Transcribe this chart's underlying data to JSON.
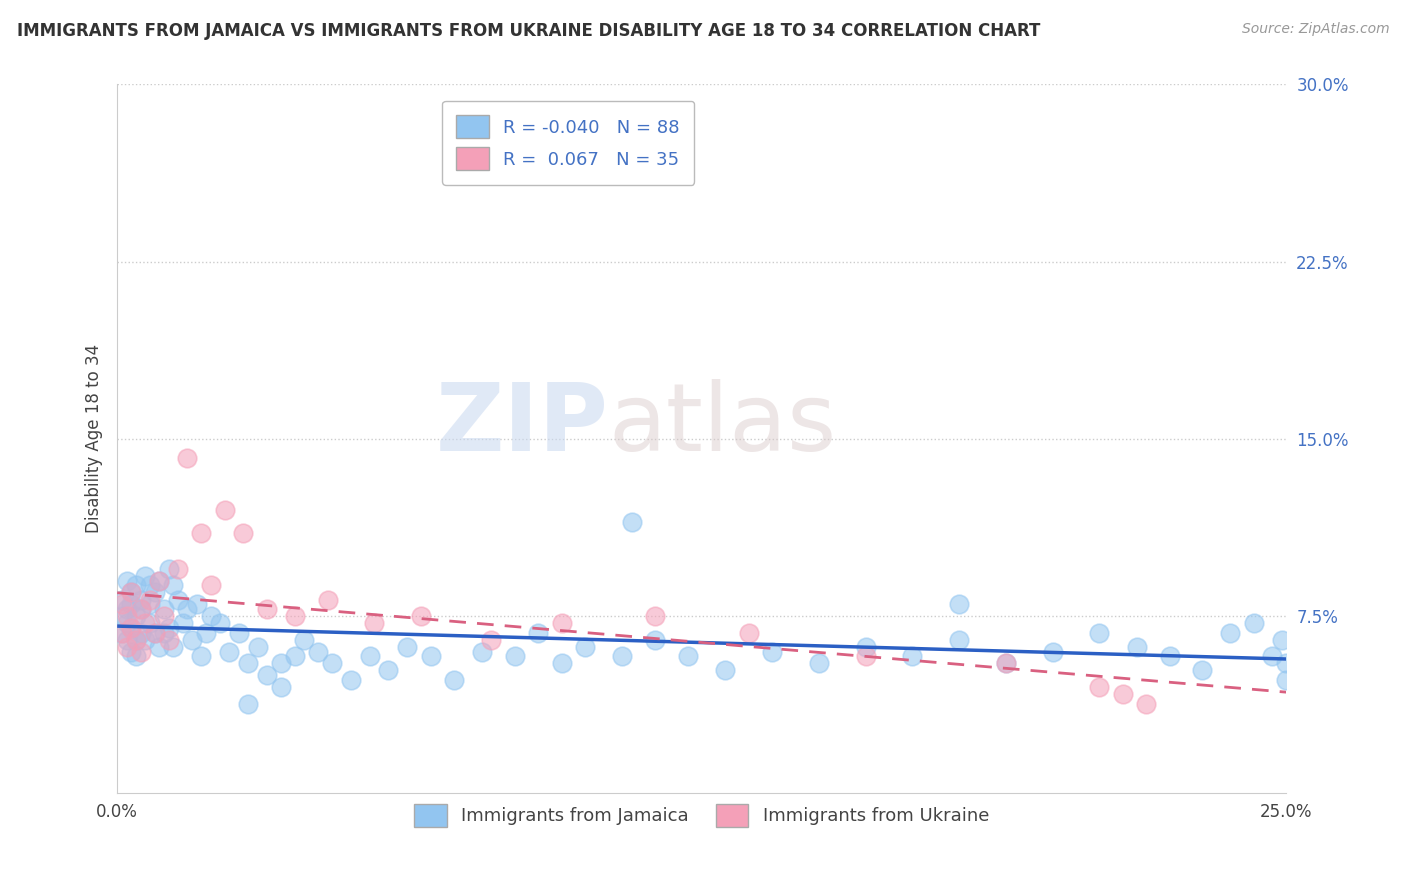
{
  "title": "IMMIGRANTS FROM JAMAICA VS IMMIGRANTS FROM UKRAINE DISABILITY AGE 18 TO 34 CORRELATION CHART",
  "source": "Source: ZipAtlas.com",
  "ylabel": "Disability Age 18 to 34",
  "xlim": [
    0.0,
    0.25
  ],
  "ylim": [
    0.0,
    0.3
  ],
  "xticks": [
    0.0,
    0.05,
    0.1,
    0.15,
    0.2,
    0.25
  ],
  "xtick_labels": [
    "0.0%",
    "",
    "",
    "",
    "",
    "25.0%"
  ],
  "yticks": [
    0.075,
    0.15,
    0.225,
    0.3
  ],
  "ytick_labels": [
    "7.5%",
    "15.0%",
    "22.5%",
    "30.0%"
  ],
  "series1_name": "Immigrants from Jamaica",
  "series2_name": "Immigrants from Ukraine",
  "series1_color": "#92C5F0",
  "series2_color": "#F4A0B8",
  "series1_line_color": "#2B5FC4",
  "series2_line_color": "#D96080",
  "series1_R": -0.04,
  "series1_N": 88,
  "series2_R": 0.067,
  "series2_N": 35,
  "series1_x": [
    0.001,
    0.001,
    0.001,
    0.002,
    0.002,
    0.002,
    0.002,
    0.003,
    0.003,
    0.003,
    0.003,
    0.004,
    0.004,
    0.004,
    0.004,
    0.005,
    0.005,
    0.005,
    0.006,
    0.006,
    0.007,
    0.007,
    0.007,
    0.008,
    0.008,
    0.009,
    0.009,
    0.01,
    0.01,
    0.011,
    0.011,
    0.012,
    0.012,
    0.013,
    0.014,
    0.015,
    0.016,
    0.017,
    0.018,
    0.019,
    0.02,
    0.022,
    0.024,
    0.026,
    0.028,
    0.03,
    0.032,
    0.035,
    0.038,
    0.04,
    0.043,
    0.046,
    0.05,
    0.054,
    0.058,
    0.062,
    0.067,
    0.072,
    0.078,
    0.085,
    0.09,
    0.095,
    0.1,
    0.108,
    0.115,
    0.122,
    0.13,
    0.14,
    0.15,
    0.16,
    0.17,
    0.18,
    0.19,
    0.2,
    0.21,
    0.218,
    0.225,
    0.232,
    0.238,
    0.243,
    0.247,
    0.249,
    0.25,
    0.25,
    0.028,
    0.035,
    0.11,
    0.18
  ],
  "series1_y": [
    0.082,
    0.075,
    0.068,
    0.09,
    0.078,
    0.065,
    0.072,
    0.085,
    0.07,
    0.06,
    0.08,
    0.088,
    0.075,
    0.065,
    0.058,
    0.082,
    0.068,
    0.078,
    0.092,
    0.065,
    0.088,
    0.072,
    0.08,
    0.085,
    0.068,
    0.09,
    0.062,
    0.078,
    0.068,
    0.095,
    0.07,
    0.088,
    0.062,
    0.082,
    0.072,
    0.078,
    0.065,
    0.08,
    0.058,
    0.068,
    0.075,
    0.072,
    0.06,
    0.068,
    0.055,
    0.062,
    0.05,
    0.055,
    0.058,
    0.065,
    0.06,
    0.055,
    0.048,
    0.058,
    0.052,
    0.062,
    0.058,
    0.048,
    0.06,
    0.058,
    0.068,
    0.055,
    0.062,
    0.058,
    0.065,
    0.058,
    0.052,
    0.06,
    0.055,
    0.062,
    0.058,
    0.065,
    0.055,
    0.06,
    0.068,
    0.062,
    0.058,
    0.052,
    0.068,
    0.072,
    0.058,
    0.065,
    0.048,
    0.055,
    0.038,
    0.045,
    0.115,
    0.08
  ],
  "series2_x": [
    0.001,
    0.001,
    0.002,
    0.002,
    0.003,
    0.003,
    0.004,
    0.005,
    0.005,
    0.006,
    0.007,
    0.008,
    0.009,
    0.01,
    0.011,
    0.013,
    0.015,
    0.018,
    0.02,
    0.023,
    0.027,
    0.032,
    0.038,
    0.045,
    0.055,
    0.065,
    0.08,
    0.095,
    0.115,
    0.135,
    0.16,
    0.19,
    0.21,
    0.215,
    0.22
  ],
  "series2_y": [
    0.08,
    0.068,
    0.075,
    0.062,
    0.085,
    0.07,
    0.065,
    0.078,
    0.06,
    0.072,
    0.082,
    0.068,
    0.09,
    0.075,
    0.065,
    0.095,
    0.142,
    0.11,
    0.088,
    0.12,
    0.11,
    0.078,
    0.075,
    0.082,
    0.072,
    0.075,
    0.065,
    0.072,
    0.075,
    0.068,
    0.058,
    0.055,
    0.045,
    0.042,
    0.038
  ],
  "watermark_zip": "ZIP",
  "watermark_atlas": "atlas",
  "background_color": "#ffffff",
  "grid_color": "#cccccc",
  "legend_R_color": "#4472C4",
  "legend_N_color": "#4472C4",
  "ytick_color": "#4472C4",
  "title_fontsize": 12,
  "axis_fontsize": 12,
  "legend_fontsize": 13
}
